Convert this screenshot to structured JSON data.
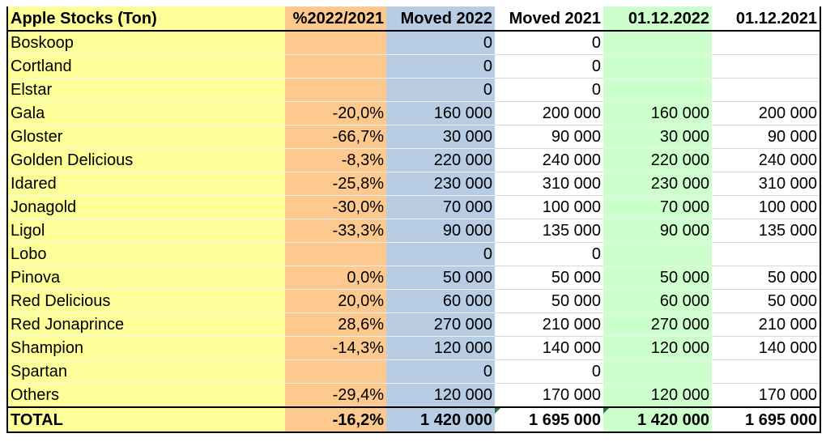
{
  "table": {
    "headers": [
      "Apple Stocks (Ton)",
      "%2022/2021",
      "Moved 2022",
      "Moved 2021",
      "01.12.2022",
      "01.12.2021"
    ],
    "rows": [
      [
        "Boskoop",
        "",
        "0",
        "0",
        "",
        ""
      ],
      [
        "Cortland",
        "",
        "0",
        "0",
        "",
        ""
      ],
      [
        "Elstar",
        "",
        "0",
        "0",
        "",
        ""
      ],
      [
        "Gala",
        "-20,0%",
        "160 000",
        "200 000",
        "160 000",
        "200 000"
      ],
      [
        "Gloster",
        "-66,7%",
        "30 000",
        "90 000",
        "30 000",
        "90 000"
      ],
      [
        "Golden Delicious",
        "-8,3%",
        "220 000",
        "240 000",
        "220 000",
        "240 000"
      ],
      [
        "Idared",
        "-25,8%",
        "230 000",
        "310 000",
        "230 000",
        "310 000"
      ],
      [
        "Jonagold",
        "-30,0%",
        "70 000",
        "100 000",
        "70 000",
        "100 000"
      ],
      [
        "Ligol",
        "-33,3%",
        "90 000",
        "135 000",
        "90 000",
        "135 000"
      ],
      [
        "Lobo",
        "",
        "0",
        "0",
        "",
        ""
      ],
      [
        "Pinova",
        "0,0%",
        "50 000",
        "50 000",
        "50 000",
        "50 000"
      ],
      [
        "Red Delicious",
        "20,0%",
        "60 000",
        "50 000",
        "60 000",
        "50 000"
      ],
      [
        "Red Jonaprince",
        "28,6%",
        "270 000",
        "210 000",
        "270 000",
        "210 000"
      ],
      [
        "Shampion",
        "-14,3%",
        "120 000",
        "140 000",
        "120 000",
        "140 000"
      ],
      [
        "Spartan",
        "",
        "0",
        "0",
        "",
        ""
      ],
      [
        "Others",
        "-29,4%",
        "120 000",
        "170 000",
        "120 000",
        "170 000"
      ]
    ],
    "total": [
      "TOTAL",
      "-16,2%",
      "1 420 000",
      "1 695 000",
      "1 420 000",
      "1 695 000"
    ],
    "column_colors": [
      "#ffff99",
      "#fdc98f",
      "#b8cce4",
      "#ffffff",
      "#ccffcc",
      "#ffffff"
    ]
  }
}
